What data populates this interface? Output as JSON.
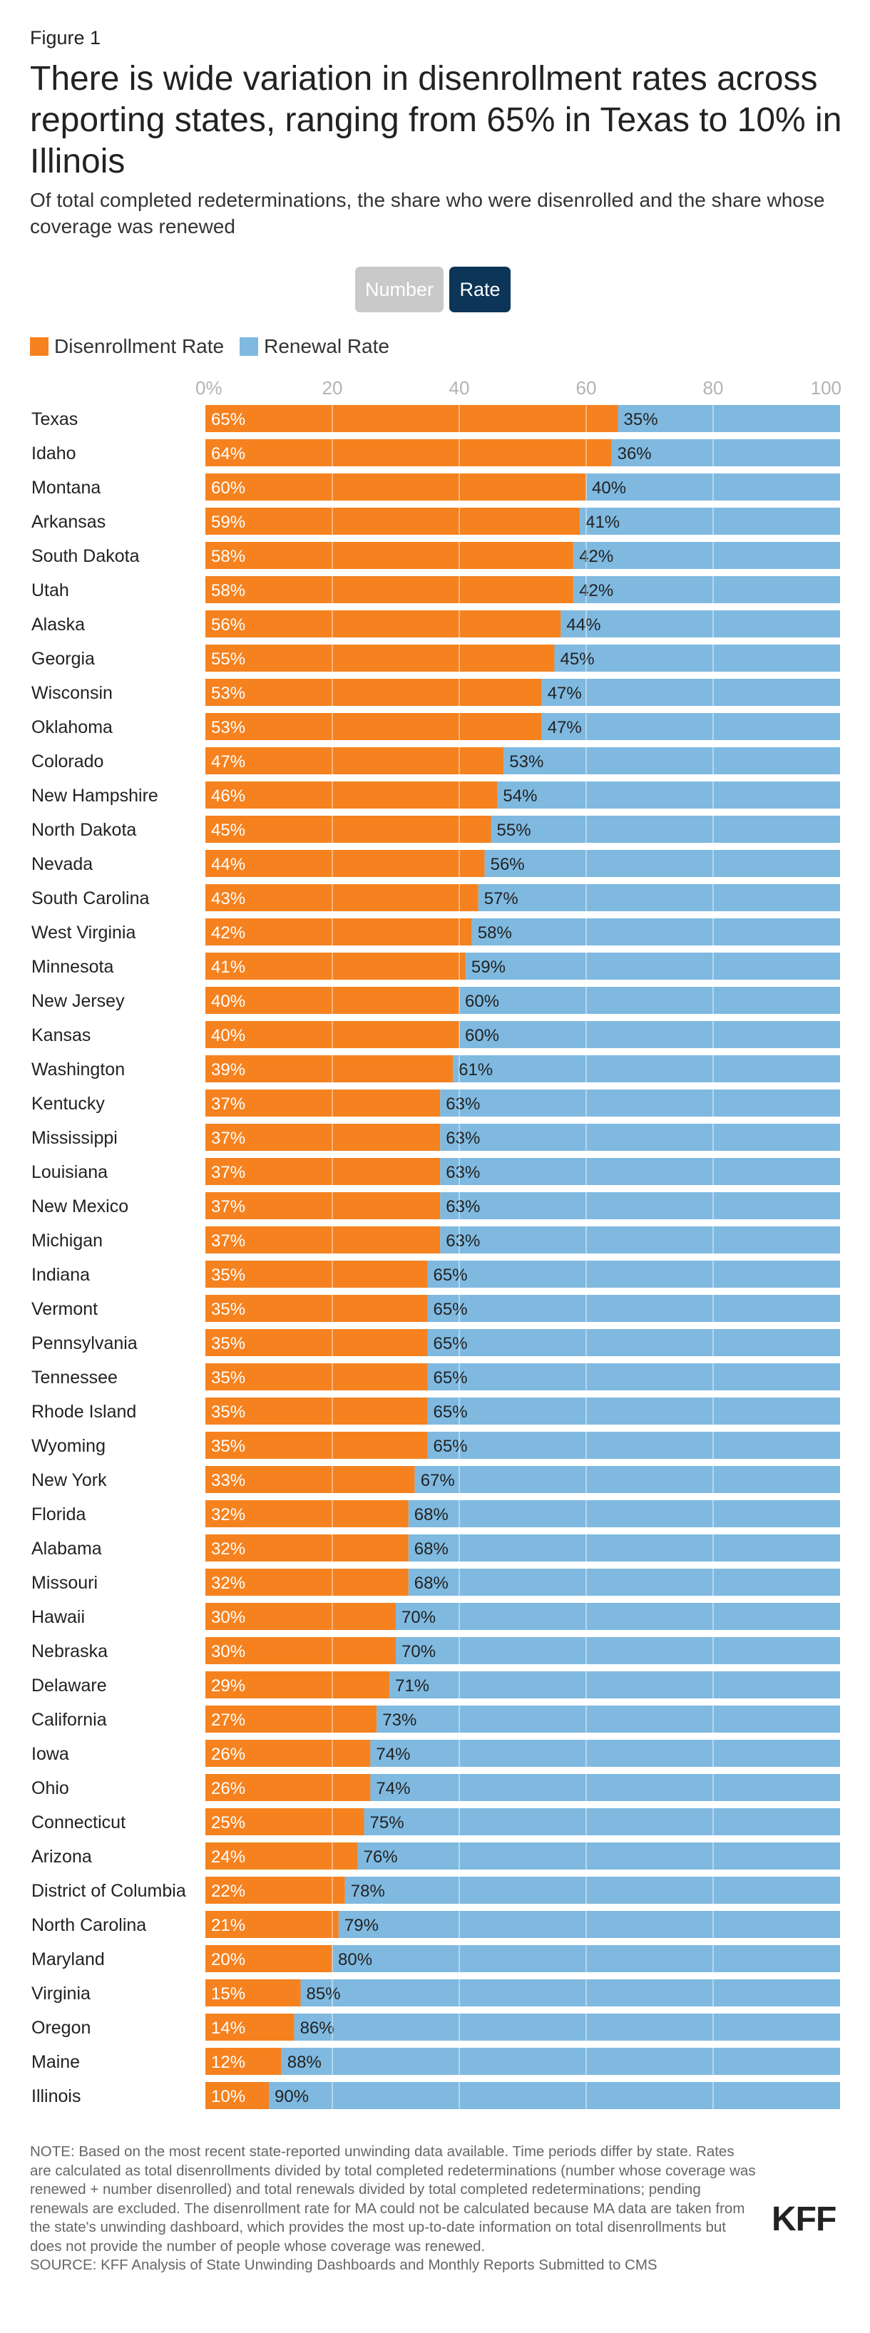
{
  "figure_label": "Figure 1",
  "title": "There is wide variation in disenrollment rates across reporting states, ranging from 65% in Texas to 10% in Illinois",
  "subtitle": "Of total completed redeterminations, the share who were disenrolled and the share whose coverage was renewed",
  "toggle": {
    "number_label": "Number",
    "rate_label": "Rate",
    "selected": "Rate"
  },
  "colors": {
    "disenrollment": "#f5821f",
    "renewal": "#7fb9e0",
    "toggle_active": "#0c3557",
    "toggle_inactive": "#c9c9c9",
    "axis_text": "#b3b3b3"
  },
  "chart_data": {
    "type": "bar",
    "orientation": "horizontal",
    "stacked": true,
    "title": "There is wide variation in disenrollment rates across reporting states, ranging from 65% in Texas to 10% in Illinois",
    "xlabel": "",
    "ylabel": "",
    "xlim": [
      0,
      100
    ],
    "ticks": [
      "0%",
      "20",
      "40",
      "60",
      "80",
      "100"
    ],
    "grid": true,
    "legend_position": "top-left",
    "categories": [
      "Texas",
      "Idaho",
      "Montana",
      "Arkansas",
      "South Dakota",
      "Utah",
      "Alaska",
      "Georgia",
      "Wisconsin",
      "Oklahoma",
      "Colorado",
      "New Hampshire",
      "North Dakota",
      "Nevada",
      "South Carolina",
      "West Virginia",
      "Minnesota",
      "New Jersey",
      "Kansas",
      "Washington",
      "Kentucky",
      "Mississippi",
      "Louisiana",
      "New Mexico",
      "Michigan",
      "Indiana",
      "Vermont",
      "Pennsylvania",
      "Tennessee",
      "Rhode Island",
      "Wyoming",
      "New York",
      "Florida",
      "Alabama",
      "Missouri",
      "Hawaii",
      "Nebraska",
      "Delaware",
      "California",
      "Iowa",
      "Ohio",
      "Connecticut",
      "Arizona",
      "District of Columbia",
      "North Carolina",
      "Maryland",
      "Virginia",
      "Oregon",
      "Maine",
      "Illinois"
    ],
    "series": [
      {
        "name": "Disenrollment Rate",
        "color": "#f5821f",
        "values": [
          65,
          64,
          60,
          59,
          58,
          58,
          56,
          55,
          53,
          53,
          47,
          46,
          45,
          44,
          43,
          42,
          41,
          40,
          40,
          39,
          37,
          37,
          37,
          37,
          37,
          35,
          35,
          35,
          35,
          35,
          35,
          33,
          32,
          32,
          32,
          30,
          30,
          29,
          27,
          26,
          26,
          25,
          24,
          22,
          21,
          20,
          15,
          14,
          12,
          10
        ],
        "labels": [
          "65%",
          "64%",
          "60%",
          "59%",
          "58%",
          "58%",
          "56%",
          "55%",
          "53%",
          "53%",
          "47%",
          "46%",
          "45%",
          "44%",
          "43%",
          "42%",
          "41%",
          "40%",
          "40%",
          "39%",
          "37%",
          "37%",
          "37%",
          "37%",
          "37%",
          "35%",
          "35%",
          "35%",
          "35%",
          "35%",
          "35%",
          "33%",
          "32%",
          "32%",
          "32%",
          "30%",
          "30%",
          "29%",
          "27%",
          "26%",
          "26%",
          "25%",
          "24%",
          "22%",
          "21%",
          "20%",
          "15%",
          "14%",
          "12%",
          "10%"
        ]
      },
      {
        "name": "Renewal Rate",
        "color": "#7fb9e0",
        "values": [
          35,
          36,
          40,
          41,
          42,
          42,
          44,
          45,
          47,
          47,
          53,
          54,
          55,
          56,
          57,
          58,
          59,
          60,
          60,
          61,
          63,
          63,
          63,
          63,
          63,
          65,
          65,
          65,
          65,
          65,
          65,
          67,
          68,
          68,
          68,
          70,
          70,
          71,
          73,
          74,
          74,
          75,
          76,
          78,
          79,
          80,
          85,
          86,
          88,
          90
        ],
        "labels": [
          "35%",
          "36%",
          "40%",
          "41%",
          "42%",
          "42%",
          "44%",
          "45%",
          "47%",
          "47%",
          "53%",
          "54%",
          "55%",
          "56%",
          "57%",
          "58%",
          "59%",
          "60%",
          "60%",
          "61%",
          "63%",
          "63%",
          "63%",
          "63%",
          "63%",
          "65%",
          "65%",
          "65%",
          "65%",
          "65%",
          "65%",
          "67%",
          "68%",
          "68%",
          "68%",
          "70%",
          "70%",
          "71%",
          "73%",
          "74%",
          "74%",
          "75%",
          "76%",
          "78%",
          "79%",
          "80%",
          "85%",
          "86%",
          "88%",
          "90%"
        ]
      }
    ]
  },
  "note": "NOTE: Based on the most recent state-reported unwinding data available. Time periods differ by state. Rates are calculated as total disenrollments divided by total completed redeterminations (number whose coverage was renewed + number disenrolled) and total renewals divided by total completed redeterminations; pending renewals are excluded. The disenrollment rate for MA could not be calculated because MA data are taken from the state's unwinding dashboard, which provides the most up-to-date information on total disenrollments but does not provide the number of people whose coverage was renewed.",
  "source": "SOURCE: KFF Analysis of State Unwinding Dashboards and Monthly Reports Submitted to CMS",
  "logo_text": "KFF"
}
